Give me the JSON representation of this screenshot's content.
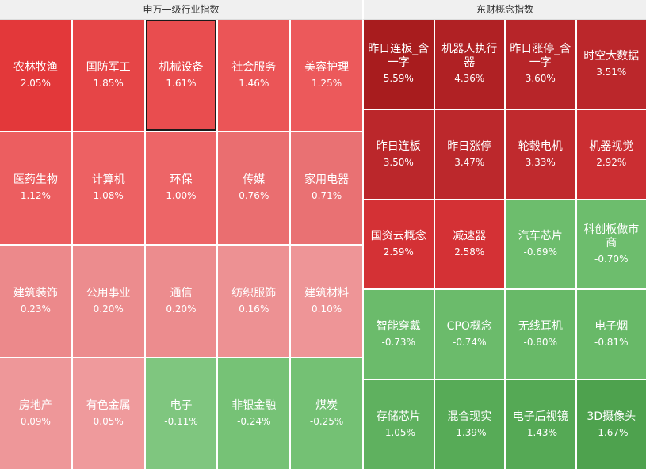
{
  "left_panel": {
    "title": "申万一级行业指数",
    "tiles": [
      {
        "name": "农林牧渔",
        "pct": "2.05%",
        "color": "#e3383a"
      },
      {
        "name": "国防军工",
        "pct": "1.85%",
        "color": "#e64547"
      },
      {
        "name": "机械设备",
        "pct": "1.61%",
        "color": "#e94d4f",
        "selected": true
      },
      {
        "name": "社会服务",
        "pct": "1.46%",
        "color": "#eb5557"
      },
      {
        "name": "美容护理",
        "pct": "1.25%",
        "color": "#ec595b"
      },
      {
        "name": "医药生物",
        "pct": "1.12%",
        "color": "#ec5e60"
      },
      {
        "name": "计算机",
        "pct": "1.08%",
        "color": "#ed6163"
      },
      {
        "name": "环保",
        "pct": "1.00%",
        "color": "#ed6567"
      },
      {
        "name": "传媒",
        "pct": "0.76%",
        "color": "#ea6e70"
      },
      {
        "name": "家用电器",
        "pct": "0.71%",
        "color": "#e97173"
      },
      {
        "name": "建筑装饰",
        "pct": "0.23%",
        "color": "#ec898b"
      },
      {
        "name": "公用事业",
        "pct": "0.20%",
        "color": "#ec8c8e"
      },
      {
        "name": "通信",
        "pct": "0.20%",
        "color": "#ec8c8e"
      },
      {
        "name": "纺织服饰",
        "pct": "0.16%",
        "color": "#ed9193"
      },
      {
        "name": "建筑材料",
        "pct": "0.10%",
        "color": "#ee9597"
      },
      {
        "name": "房地产",
        "pct": "0.09%",
        "color": "#ee9799"
      },
      {
        "name": "有色金属",
        "pct": "0.05%",
        "color": "#ef9a9c"
      },
      {
        "name": "电子",
        "pct": "-0.11%",
        "color": "#7fc67f"
      },
      {
        "name": "非银金融",
        "pct": "-0.24%",
        "color": "#76c276"
      },
      {
        "name": "煤炭",
        "pct": "-0.25%",
        "color": "#74c174"
      }
    ]
  },
  "right_panel": {
    "title": "东财概念指数",
    "tiles": [
      {
        "name": "昨日连板_含一字",
        "pct": "5.59%",
        "color": "#a81c1e"
      },
      {
        "name": "机器人执行器",
        "pct": "4.36%",
        "color": "#b02124"
      },
      {
        "name": "昨日涨停_含一字",
        "pct": "3.60%",
        "color": "#b72529"
      },
      {
        "name": "时空大数据",
        "pct": "3.51%",
        "color": "#bb272b"
      },
      {
        "name": "昨日连板",
        "pct": "3.50%",
        "color": "#bb272b"
      },
      {
        "name": "昨日涨停",
        "pct": "3.47%",
        "color": "#bc282c"
      },
      {
        "name": "轮毂电机",
        "pct": "3.33%",
        "color": "#c02a2e"
      },
      {
        "name": "机器视觉",
        "pct": "2.92%",
        "color": "#cb2e32"
      },
      {
        "name": "国资云概念",
        "pct": "2.59%",
        "color": "#d43135"
      },
      {
        "name": "减速器",
        "pct": "2.58%",
        "color": "#d43135"
      },
      {
        "name": "汽车芯片",
        "pct": "-0.69%",
        "color": "#6dbd6d"
      },
      {
        "name": "科创板做市商",
        "pct": "-0.70%",
        "color": "#6dbd6d"
      },
      {
        "name": "智能穿戴",
        "pct": "-0.73%",
        "color": "#6bbb6b"
      },
      {
        "name": "CPO概念",
        "pct": "-0.74%",
        "color": "#6bbb6b"
      },
      {
        "name": "无线耳机",
        "pct": "-0.80%",
        "color": "#68b968"
      },
      {
        "name": "电子烟",
        "pct": "-0.81%",
        "color": "#68b968"
      },
      {
        "name": "存储芯片",
        "pct": "-1.05%",
        "color": "#5fb15f"
      },
      {
        "name": "混合现实",
        "pct": "-1.39%",
        "color": "#57ab57"
      },
      {
        "name": "电子后视镜",
        "pct": "-1.43%",
        "color": "#55a955"
      },
      {
        "name": "3D摄像头",
        "pct": "-1.67%",
        "color": "#4ea24e"
      }
    ]
  }
}
